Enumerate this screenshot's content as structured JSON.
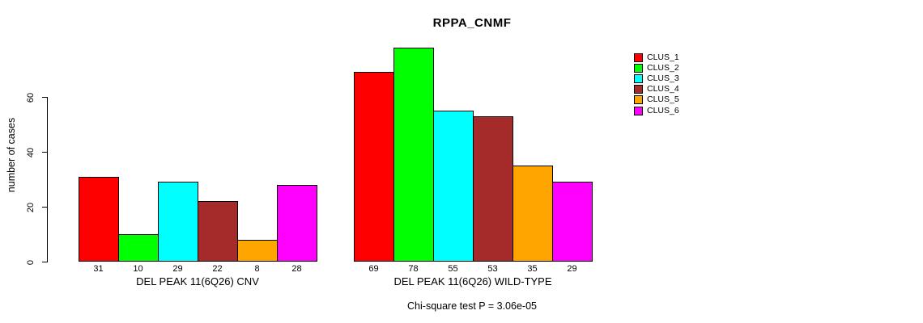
{
  "chart_data": {
    "type": "bar",
    "title": "RPPA_CNMF",
    "ylabel": "number of cases",
    "annotation": "Chi-square test P = 3.06e-05",
    "categories": [
      "DEL PEAK 11(6Q26) CNV",
      "DEL PEAK 11(6Q26) WILD-TYPE"
    ],
    "series": [
      {
        "name": "CLUS_1",
        "color": "#ff0000",
        "values": [
          31,
          69
        ]
      },
      {
        "name": "CLUS_2",
        "color": "#00ff00",
        "values": [
          10,
          78
        ]
      },
      {
        "name": "CLUS_3",
        "color": "#00ffff",
        "values": [
          29,
          55
        ]
      },
      {
        "name": "CLUS_4",
        "color": "#a52a2a",
        "values": [
          22,
          53
        ]
      },
      {
        "name": "CLUS_5",
        "color": "#ffa500",
        "values": [
          8,
          35
        ]
      },
      {
        "name": "CLUS_6",
        "color": "#ff00ff",
        "values": [
          28,
          29
        ]
      }
    ],
    "yticks": [
      0,
      20,
      40,
      60
    ],
    "ylim": [
      0,
      80
    ],
    "grid": false,
    "bar_value_labels": true,
    "legend_position": "right",
    "bar_border_color": "#000000",
    "axis_color": "#000000",
    "background_color": "#ffffff"
  }
}
